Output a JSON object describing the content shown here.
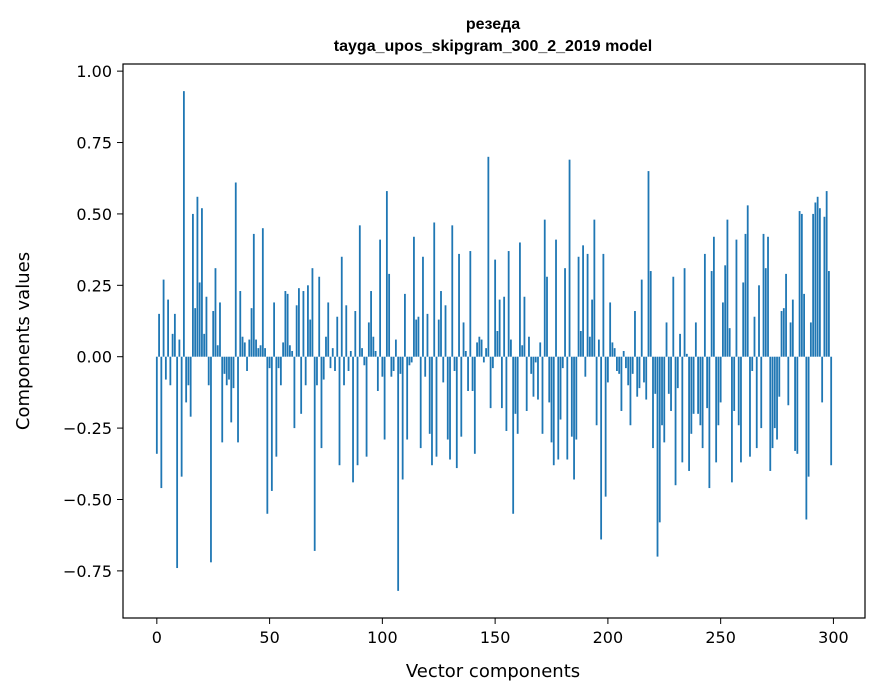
{
  "chart_data": {
    "type": "bar",
    "title": "резеда",
    "subtitle": "tayga_upos_skipgram_300_2_2019 model",
    "xlabel": "Vector components",
    "ylabel": "Components values",
    "xlim": [
      -15,
      314
    ],
    "ylim": [
      -0.915,
      1.025
    ],
    "x_ticks": [
      0,
      50,
      100,
      150,
      200,
      250,
      300
    ],
    "y_ticks": [
      -0.75,
      -0.5,
      -0.25,
      0.0,
      0.25,
      0.5,
      0.75,
      1.0
    ],
    "x_tick_labels": [
      "0",
      "50",
      "100",
      "150",
      "200",
      "250",
      "300"
    ],
    "y_tick_labels": [
      "−0.75",
      "−0.50",
      "−0.25",
      "0.00",
      "0.25",
      "0.50",
      "0.75",
      "1.00"
    ],
    "bar_color": "#1f77b4",
    "grid": false,
    "values": [
      -0.34,
      0.15,
      -0.46,
      0.27,
      -0.08,
      0.2,
      -0.1,
      0.08,
      0.15,
      -0.74,
      0.06,
      -0.42,
      0.93,
      -0.16,
      -0.1,
      -0.21,
      0.5,
      0.17,
      0.56,
      0.26,
      0.52,
      0.08,
      0.21,
      -0.1,
      -0.72,
      0.16,
      0.31,
      0.04,
      0.19,
      -0.3,
      -0.06,
      -0.1,
      -0.08,
      -0.23,
      -0.11,
      0.61,
      -0.3,
      0.23,
      0.07,
      0.05,
      -0.05,
      0.06,
      0.17,
      0.43,
      0.06,
      0.03,
      0.04,
      0.45,
      0.03,
      -0.55,
      -0.04,
      -0.47,
      0.19,
      -0.35,
      -0.04,
      -0.1,
      0.05,
      0.23,
      0.22,
      0.04,
      0.02,
      -0.25,
      0.18,
      0.24,
      -0.2,
      0.23,
      -0.1,
      0.25,
      0.13,
      0.31,
      -0.68,
      -0.1,
      0.28,
      -0.32,
      -0.08,
      0.07,
      0.19,
      -0.04,
      0.03,
      -0.05,
      0.14,
      -0.38,
      0.35,
      -0.1,
      0.18,
      -0.05,
      0.02,
      -0.44,
      0.16,
      -0.38,
      0.46,
      0.03,
      -0.03,
      -0.35,
      0.12,
      0.23,
      0.07,
      0.02,
      -0.12,
      0.41,
      -0.07,
      -0.29,
      0.58,
      0.29,
      -0.07,
      -0.05,
      0.06,
      -0.82,
      -0.06,
      -0.43,
      0.22,
      -0.29,
      -0.03,
      -0.02,
      0.42,
      0.13,
      0.14,
      -0.32,
      0.35,
      -0.07,
      0.15,
      -0.27,
      -0.38,
      0.47,
      -0.35,
      0.13,
      0.23,
      -0.09,
      0.18,
      -0.29,
      -0.36,
      0.46,
      -0.05,
      -0.39,
      0.36,
      -0.28,
      0.12,
      0.02,
      -0.12,
      0.37,
      -0.12,
      -0.34,
      0.05,
      0.07,
      0.06,
      -0.02,
      0.03,
      0.7,
      -0.18,
      -0.04,
      0.34,
      0.09,
      0.2,
      -0.18,
      0.21,
      -0.26,
      0.37,
      0.06,
      -0.55,
      -0.2,
      -0.27,
      0.4,
      0.04,
      0.21,
      -0.19,
      0.07,
      -0.06,
      -0.14,
      -0.02,
      -0.15,
      0.05,
      -0.27,
      0.48,
      0.28,
      -0.16,
      -0.3,
      -0.38,
      0.41,
      -0.36,
      -0.22,
      -0.04,
      0.31,
      -0.36,
      0.69,
      -0.28,
      -0.43,
      -0.29,
      0.35,
      0.09,
      0.39,
      -0.07,
      0.36,
      0.07,
      0.2,
      0.48,
      -0.24,
      0.06,
      -0.64,
      0.36,
      -0.49,
      -0.09,
      0.19,
      0.05,
      0.03,
      -0.05,
      -0.06,
      -0.19,
      0.02,
      -0.04,
      -0.1,
      -0.24,
      -0.06,
      0.16,
      -0.14,
      -0.11,
      0.27,
      -0.09,
      -0.15,
      0.65,
      0.3,
      -0.32,
      -0.13,
      -0.7,
      -0.58,
      -0.24,
      -0.3,
      0.12,
      -0.13,
      -0.19,
      0.28,
      -0.45,
      -0.11,
      0.08,
      -0.37,
      0.31,
      0.01,
      -0.4,
      -0.27,
      -0.2,
      0.12,
      -0.2,
      -0.24,
      -0.32,
      0.36,
      -0.18,
      -0.46,
      0.3,
      0.42,
      -0.37,
      -0.24,
      -0.16,
      0.19,
      0.32,
      0.48,
      0.1,
      -0.44,
      -0.19,
      0.41,
      -0.24,
      -0.37,
      0.26,
      0.43,
      0.53,
      -0.35,
      -0.05,
      0.14,
      -0.32,
      0.25,
      -0.25,
      0.43,
      0.31,
      0.42,
      -0.4,
      -0.32,
      -0.25,
      -0.29,
      -0.14,
      0.16,
      0.17,
      0.29,
      -0.17,
      0.12,
      0.2,
      -0.33,
      -0.34,
      0.51,
      0.5,
      0.22,
      -0.57,
      -0.42,
      0.12,
      0.5,
      0.54,
      0.56,
      0.52,
      -0.16,
      0.49,
      0.58,
      0.3,
      -0.38
    ]
  }
}
